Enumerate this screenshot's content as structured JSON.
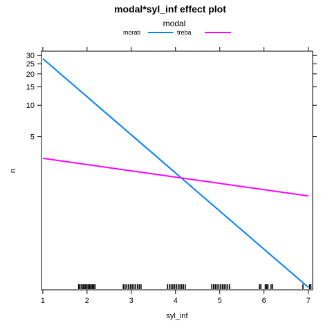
{
  "chart_data": {
    "type": "line",
    "title": "modal*syl_inf effect plot",
    "xlabel": "syl_inf",
    "ylabel": "n",
    "xlim": [
      0.97,
      7.1
    ],
    "ylim": [
      0.17,
      33
    ],
    "y_scale": "log",
    "x_ticks": [
      1,
      2,
      3,
      4,
      5,
      6,
      7
    ],
    "x_tick_labels": [
      "1",
      "2",
      "3",
      "4",
      "5",
      "6",
      "7"
    ],
    "y_ticks": [
      5,
      10,
      15,
      20,
      25,
      30
    ],
    "y_tick_labels": [
      "5",
      "10",
      "15",
      "20",
      "25",
      "30"
    ],
    "legend": {
      "title": "modal",
      "position": "top"
    },
    "grid": false,
    "series": [
      {
        "name": "morati",
        "color": "#0080ff",
        "x": [
          1,
          7
        ],
        "y": [
          28,
          0.18
        ]
      },
      {
        "name": "treba",
        "color": "#ff00ff",
        "x": [
          1,
          7
        ],
        "y": [
          3.1,
          1.35
        ]
      }
    ],
    "rug": [
      1.81,
      1.84,
      1.88,
      1.91,
      1.94,
      1.97,
      2.0,
      2.03,
      2.06,
      2.09,
      2.12,
      2.15,
      2.18,
      2.82,
      2.86,
      2.9,
      2.94,
      2.98,
      3.02,
      3.06,
      3.1,
      3.14,
      3.18,
      3.22,
      3.82,
      3.86,
      3.9,
      3.94,
      3.98,
      4.02,
      4.06,
      4.1,
      4.14,
      4.18,
      4.22,
      4.82,
      4.86,
      4.9,
      4.94,
      4.98,
      5.02,
      5.06,
      5.1,
      5.14,
      5.18,
      5.22,
      5.9,
      5.93,
      6.03,
      6.06,
      6.09,
      6.16,
      6.19,
      6.88,
      7.03,
      7.06
    ]
  }
}
